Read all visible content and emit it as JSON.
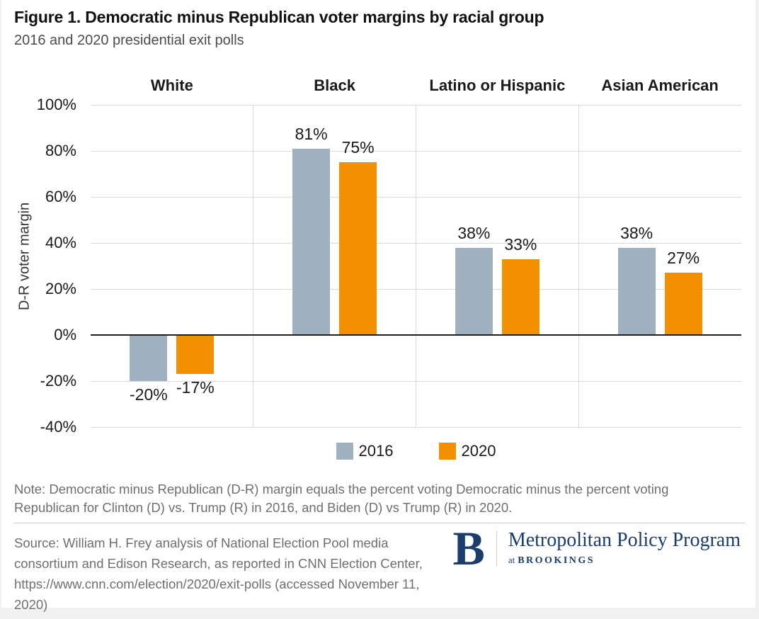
{
  "header": {
    "title": "Figure 1. Democratic minus Republican voter margins by racial group",
    "subtitle": "2016 and 2020 presidential exit polls"
  },
  "chart_data": {
    "type": "bar",
    "categories": [
      "White",
      "Black",
      "Latino or Hispanic",
      "Asian American"
    ],
    "series": [
      {
        "name": "2016",
        "color": "#9FB0BE",
        "values": [
          -20,
          81,
          38,
          38
        ]
      },
      {
        "name": "2020",
        "color": "#F39000",
        "values": [
          -17,
          75,
          33,
          27
        ]
      }
    ],
    "xlabel": "",
    "ylabel": "D-R voter margin",
    "yticks": [
      100,
      80,
      60,
      40,
      20,
      0,
      -20,
      -40
    ],
    "ylim": [
      -40,
      100
    ],
    "value_suffix": "%",
    "grid": true,
    "legend_position": "bottom"
  },
  "note": {
    "text": "Note: Democratic minus Republican (D-R) margin equals the percent voting Democratic minus the percent voting Republican for Clinton (D) vs. Trump (R) in 2016, and Biden (D) vs Trump (R) in 2020."
  },
  "source": {
    "text": "Source: William H. Frey analysis of National Election Pool media consortium and Edison Research, as reported in CNN Election Center, https://www.cnn.com/election/2020/exit-polls (accessed November 11, 2020)"
  },
  "logo": {
    "letter": "B",
    "program": "Metropolitan Policy Program",
    "tagline_prefix": "at",
    "org": "BROOKINGS"
  },
  "colors": {
    "series_2016": "#9FB0BE",
    "series_2020": "#F39000",
    "brand_navy": "#1B3D6C",
    "gridline": "#DADADA",
    "zero_line": "#1F1F1F"
  }
}
